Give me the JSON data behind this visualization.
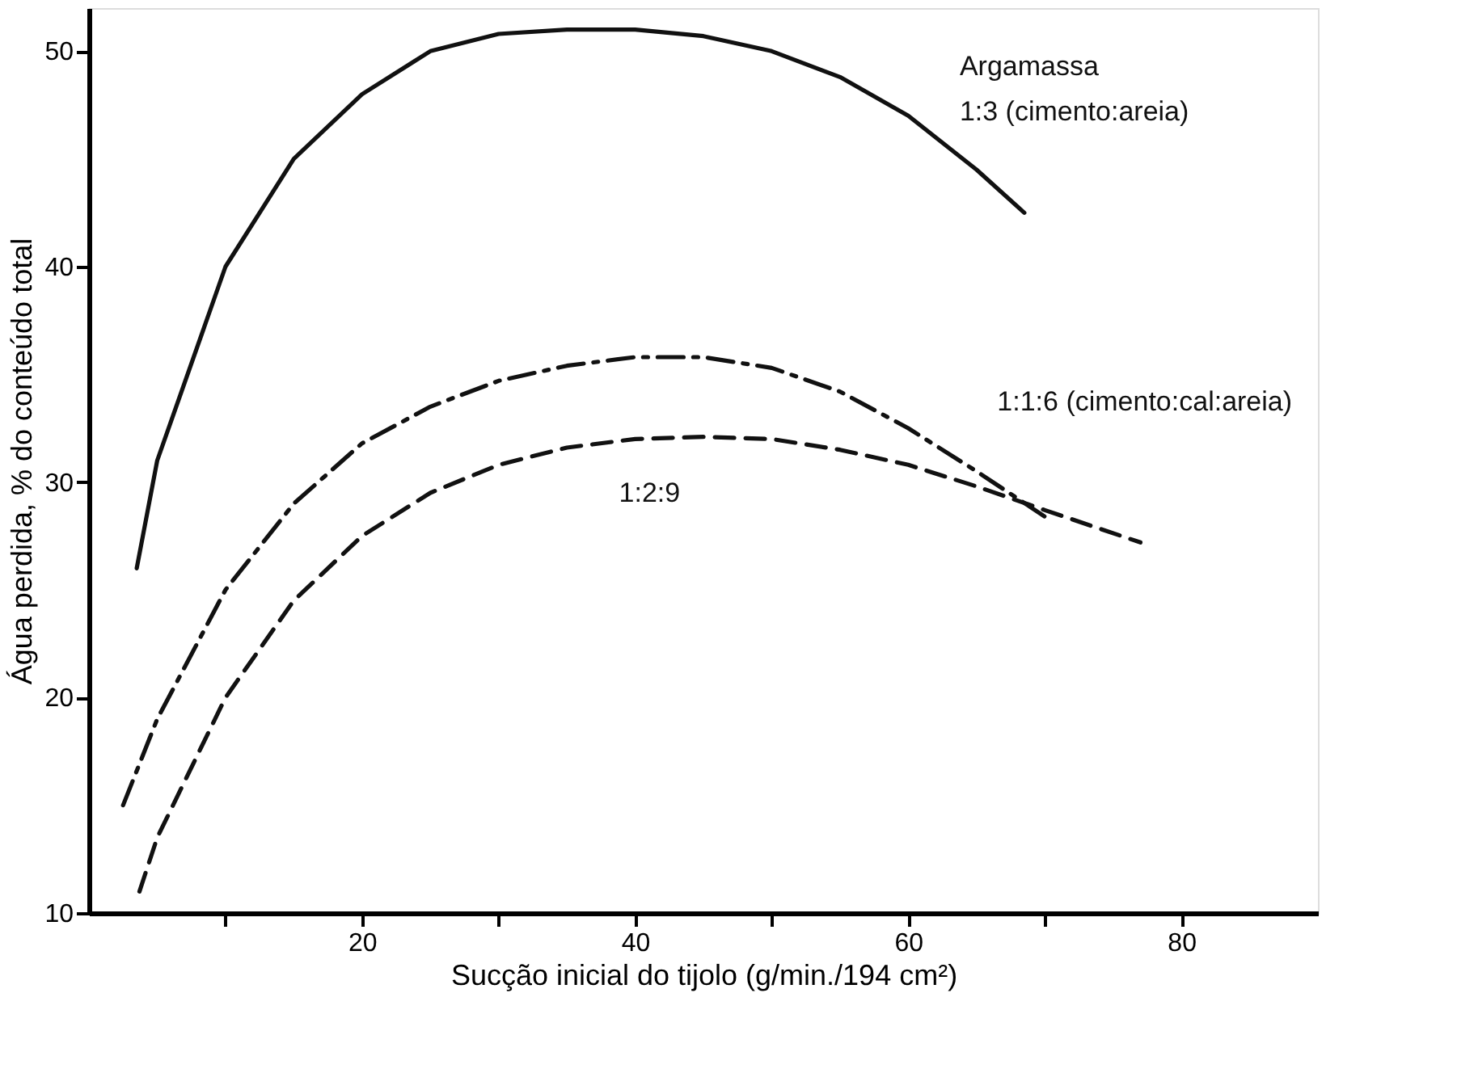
{
  "chart_data": {
    "type": "line",
    "xlabel": "Sucção inicial do tijolo (g/min./194 cm²)",
    "ylabel": "Água perdida, % do conteúdo total",
    "xlim": [
      0,
      90
    ],
    "ylim": [
      10,
      52
    ],
    "xticks": [
      {
        "value": 10,
        "label": null
      },
      20,
      {
        "value": 30,
        "label": null
      },
      40,
      {
        "value": 50,
        "label": null
      },
      60,
      {
        "value": 70,
        "label": null
      },
      80
    ],
    "yticks": [
      10,
      20,
      30,
      40,
      50
    ],
    "grid": false,
    "marker": "none",
    "series": [
      {
        "name": "1:3 (cimento:areia)",
        "color": "#111111",
        "line_style": "solid",
        "x": [
          3.5,
          5,
          10,
          15,
          20,
          25,
          30,
          35,
          40,
          45,
          50,
          55,
          60,
          65,
          68.5
        ],
        "values": [
          26,
          31,
          40,
          45,
          48,
          50,
          50.8,
          51,
          51,
          50.7,
          50,
          48.8,
          47,
          44.5,
          42.5
        ]
      },
      {
        "name": "1:1:6 (cimento:cal:areia)",
        "color": "#111111",
        "line_style": "dashdot",
        "x": [
          2.5,
          5,
          10,
          15,
          20,
          25,
          30,
          35,
          40,
          45,
          50,
          55,
          60,
          65,
          70
        ],
        "values": [
          15,
          19,
          25,
          29,
          31.8,
          33.5,
          34.7,
          35.4,
          35.8,
          35.8,
          35.3,
          34.2,
          32.5,
          30.5,
          28.4
        ]
      },
      {
        "name": "1:2:9",
        "color": "#111111",
        "line_style": "dashed",
        "x": [
          3.7,
          5,
          10,
          15,
          20,
          25,
          30,
          35,
          40,
          45,
          50,
          55,
          60,
          65,
          70,
          77
        ],
        "values": [
          11,
          13.5,
          20,
          24.5,
          27.5,
          29.5,
          30.8,
          31.6,
          32,
          32.1,
          32,
          31.5,
          30.8,
          29.8,
          28.7,
          27.2
        ]
      }
    ],
    "annotations": [
      "Argamassa"
    ]
  }
}
